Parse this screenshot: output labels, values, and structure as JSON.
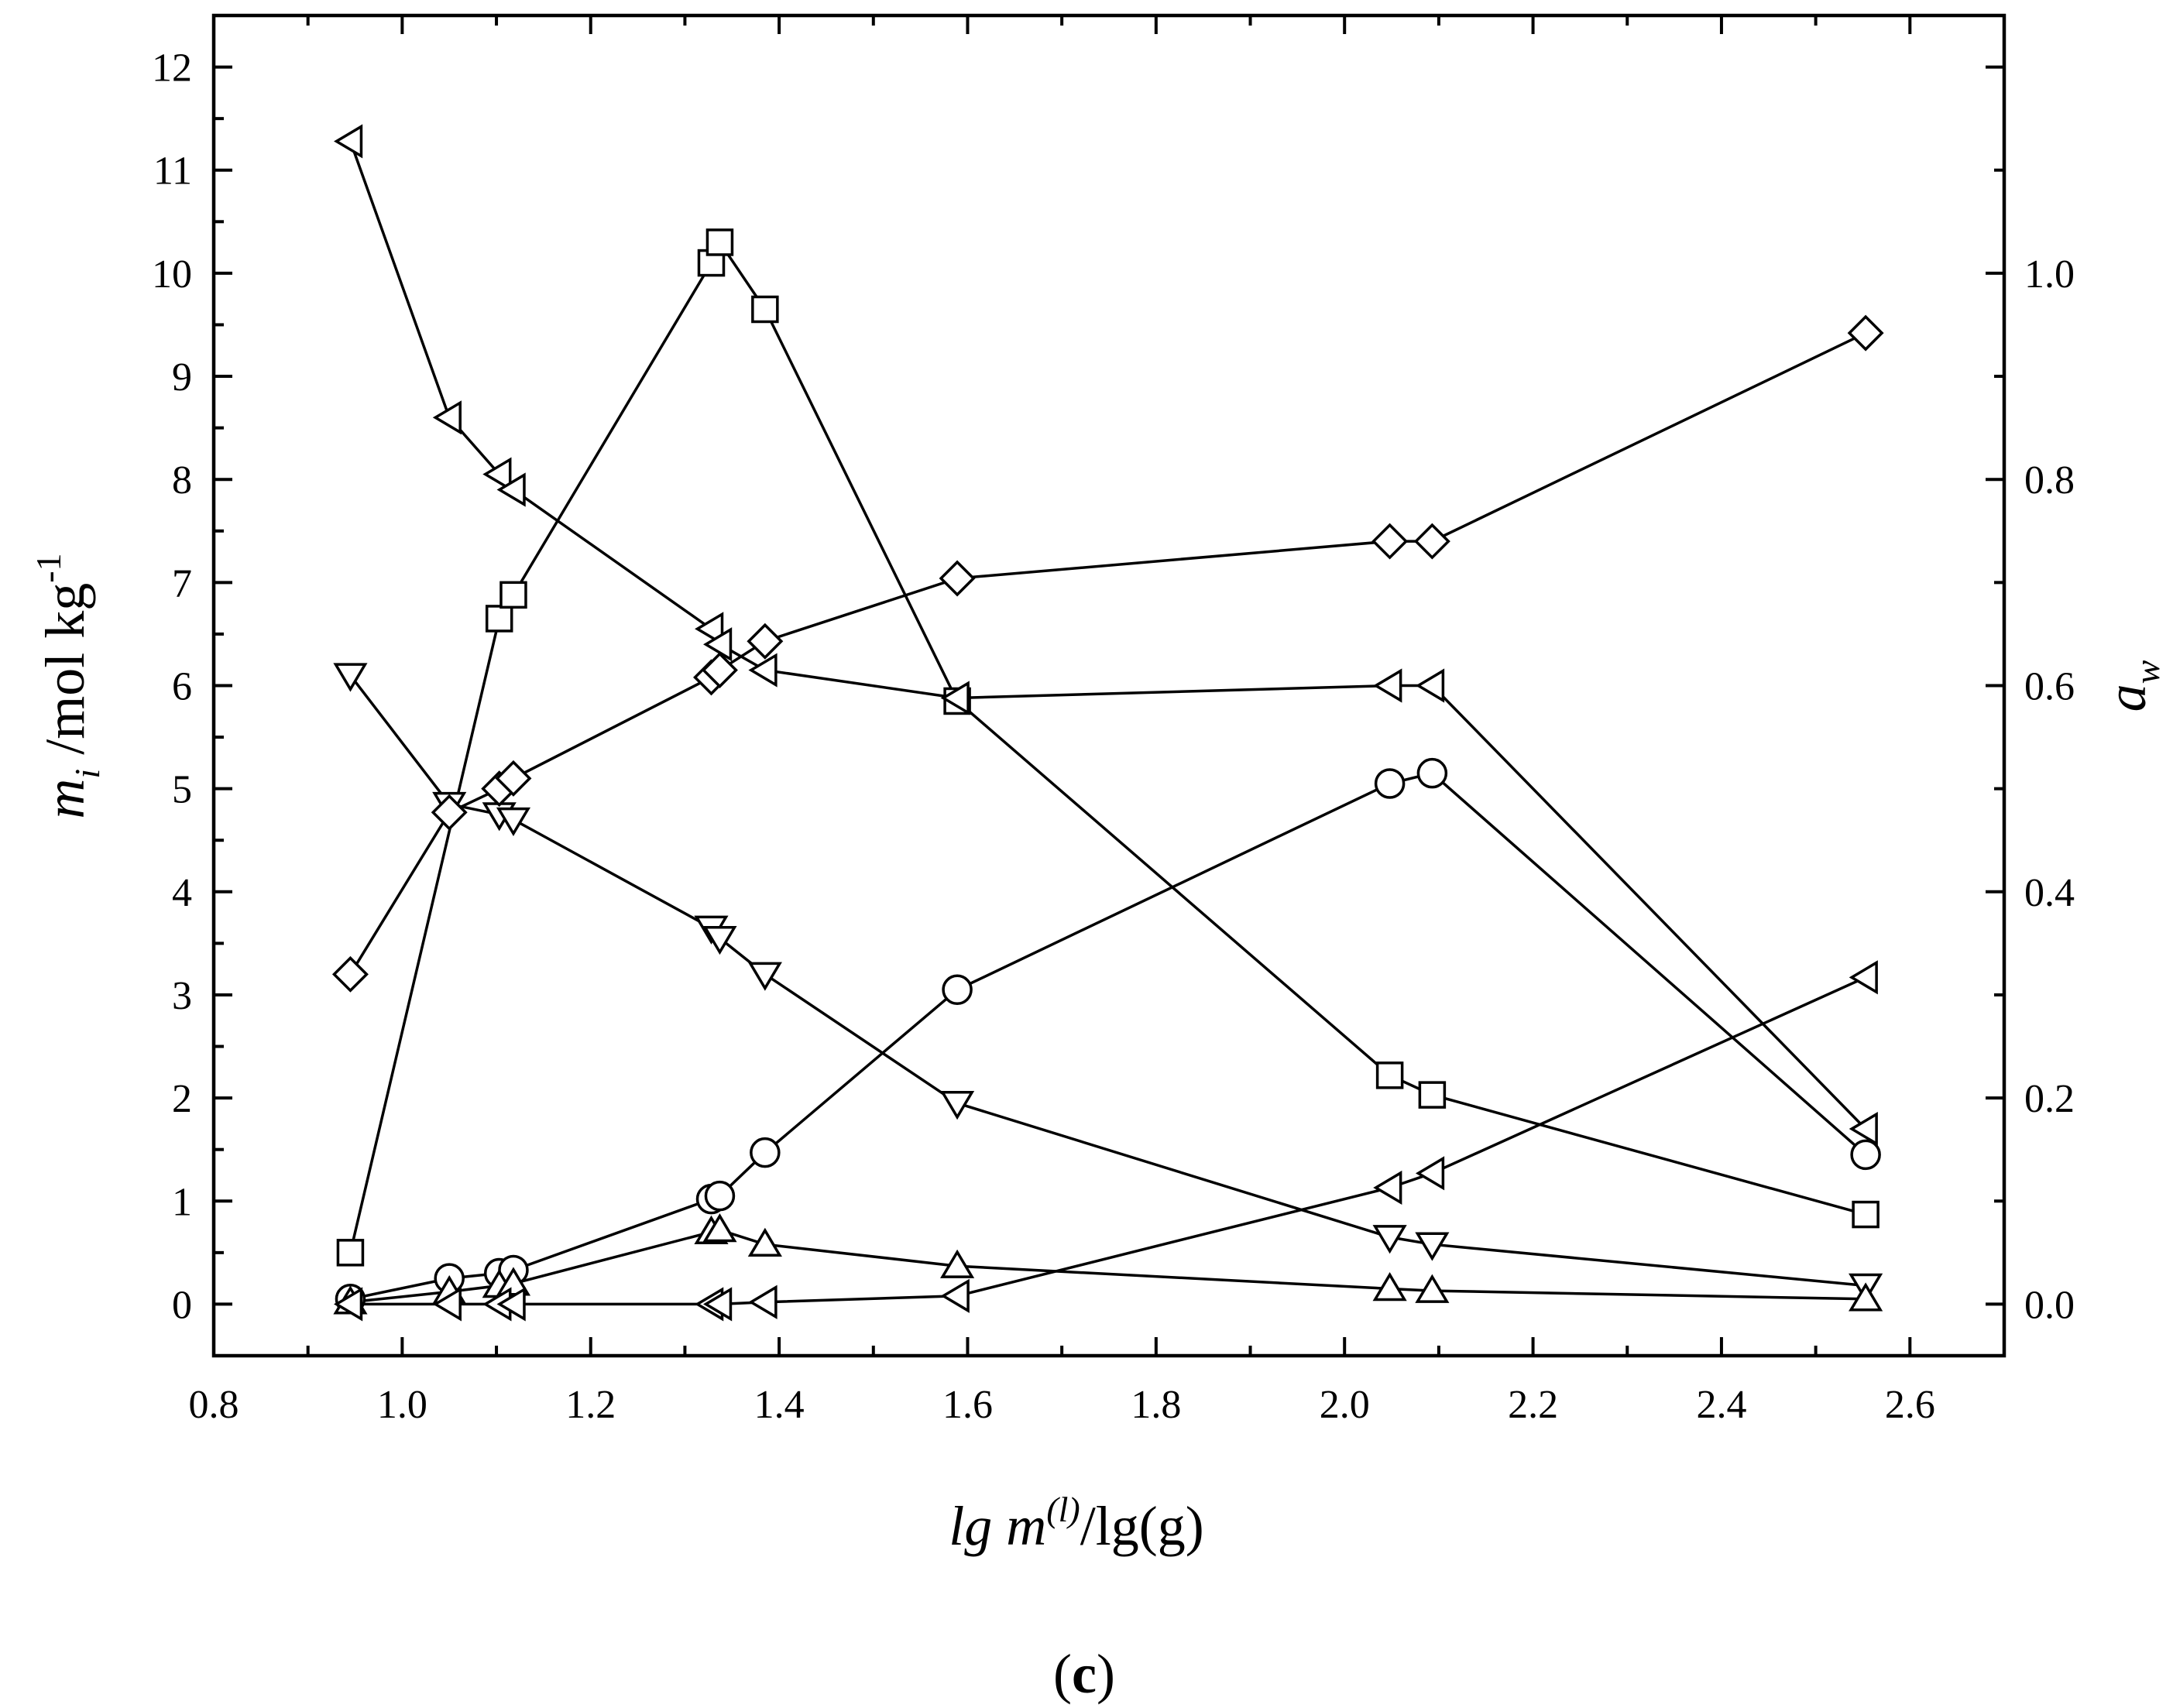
{
  "chart_data": {
    "type": "line",
    "title": "",
    "xlabel": "lg m(l)/lg(g)",
    "ylabel": "mi /mol kg-1",
    "y2label": "aw",
    "xlim": [
      0.8,
      2.7
    ],
    "ylim": [
      -0.5,
      12.5
    ],
    "y2lim": [
      -0.05,
      1.25
    ],
    "xticks": [
      "0.8",
      "1.0",
      "1.2",
      "1.4",
      "1.6",
      "1.8",
      "2.0",
      "2.2",
      "2.4",
      "2.6"
    ],
    "yticks": [
      "0",
      "1",
      "2",
      "3",
      "4",
      "5",
      "6",
      "7",
      "8",
      "9",
      "10",
      "11",
      "12"
    ],
    "y2ticks": [
      "0.0",
      "0.2",
      "0.4",
      "0.6",
      "0.8",
      "1.0"
    ],
    "grid": false,
    "legend": "none",
    "series": [
      {
        "marker": "square",
        "axis": "left",
        "x": [
          0.945,
          1.103,
          1.118,
          1.328,
          1.337,
          1.385,
          1.589,
          2.048,
          2.093,
          2.553
        ],
        "y": [
          0.5,
          6.65,
          6.88,
          10.1,
          10.3,
          9.65,
          5.85,
          2.22,
          2.03,
          0.87
        ]
      },
      {
        "marker": "triangle-left",
        "axis": "left",
        "x": [
          0.945,
          1.05,
          1.103,
          1.118,
          1.328,
          1.337,
          1.385,
          1.589,
          2.048,
          2.093,
          2.553
        ],
        "y": [
          11.28,
          8.6,
          8.05,
          7.9,
          6.55,
          6.4,
          6.15,
          5.88,
          6.0,
          6.0,
          1.7
        ]
      },
      {
        "marker": "triangle-down",
        "axis": "left",
        "x": [
          0.945,
          1.05,
          1.103,
          1.118,
          1.328,
          1.337,
          1.385,
          1.589,
          2.048,
          2.093,
          2.553
        ],
        "y": [
          6.1,
          4.85,
          4.75,
          4.7,
          3.65,
          3.55,
          3.2,
          1.95,
          0.65,
          0.58,
          0.18
        ]
      },
      {
        "marker": "circle",
        "axis": "left",
        "x": [
          0.945,
          1.05,
          1.103,
          1.118,
          1.328,
          1.337,
          1.385,
          1.589,
          2.048,
          2.093,
          2.553
        ],
        "y": [
          0.05,
          0.25,
          0.3,
          0.33,
          1.02,
          1.05,
          1.47,
          3.05,
          5.05,
          5.15,
          1.45
        ]
      },
      {
        "marker": "triangle-up",
        "axis": "left",
        "x": [
          0.945,
          1.05,
          1.103,
          1.118,
          1.328,
          1.337,
          1.385,
          1.589,
          2.048,
          2.093,
          2.553
        ],
        "y": [
          0.02,
          0.12,
          0.18,
          0.2,
          0.7,
          0.72,
          0.58,
          0.37,
          0.15,
          0.13,
          0.05
        ]
      },
      {
        "marker": "triangle-left",
        "axis": "left",
        "x": [
          0.945,
          1.05,
          1.103,
          1.118,
          1.328,
          1.337,
          1.385,
          1.589,
          2.048,
          2.093,
          2.553
        ],
        "y": [
          0.0,
          0.0,
          0.0,
          0.0,
          0.0,
          0.0,
          0.02,
          0.08,
          1.13,
          1.27,
          3.17
        ]
      },
      {
        "marker": "diamond",
        "axis": "right",
        "x": [
          0.945,
          1.05,
          1.103,
          1.118,
          1.328,
          1.337,
          1.385,
          1.589,
          2.048,
          2.093,
          2.553
        ],
        "y": [
          0.32,
          0.477,
          0.5,
          0.51,
          0.608,
          0.615,
          0.643,
          0.704,
          0.74,
          0.74,
          0.942
        ]
      }
    ]
  },
  "caption": "(c)"
}
